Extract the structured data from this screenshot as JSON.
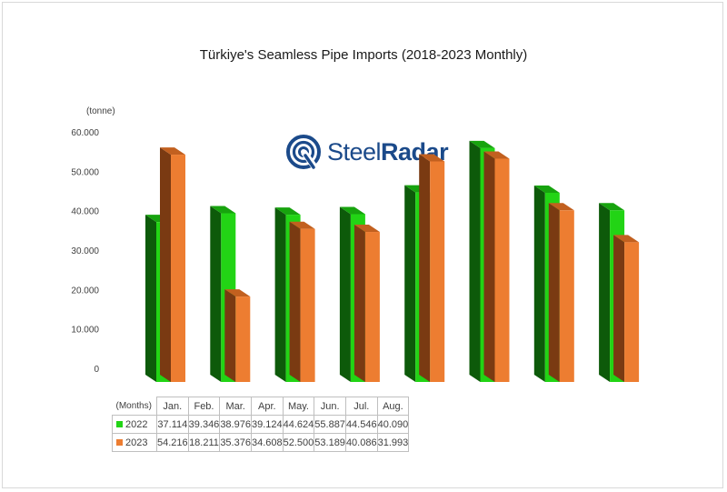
{
  "colors": {
    "series_2022_front": "#22d415",
    "series_2022_side": "#0d5a0a",
    "series_2023_front": "#ed7d31",
    "series_2023_side": "#7a3a12",
    "logo_blue": "#1b4a8a"
  },
  "logo": {
    "text_light": "Steel",
    "text_bold": "Radar",
    "icon": "steelradar-logo-icon"
  },
  "table": {
    "corner_label": "(Months)"
  },
  "chart_data": {
    "type": "bar",
    "title": "Türkiye's Seamless Pipe Imports (2018-2023 Monthly)",
    "ylabel": "(tonne)",
    "xlabel": "",
    "ylim": [
      0,
      60000
    ],
    "yticks": [
      0,
      10000,
      20000,
      30000,
      40000,
      50000,
      60000
    ],
    "ytick_labels": [
      "0",
      "10.000",
      "20.000",
      "30.000",
      "40.000",
      "50.000",
      "60.000"
    ],
    "grid": false,
    "legend": "data-table",
    "categories": [
      "Jan.",
      "Feb.",
      "Mar.",
      "Apr.",
      "May.",
      "Jun.",
      "Jul.",
      "Aug."
    ],
    "series": [
      {
        "name": "2022",
        "values": [
          37114,
          39346,
          38976,
          39124,
          44624,
          55887,
          44546,
          40090
        ],
        "labels": [
          "37.114",
          "39.346",
          "38.976",
          "39.124",
          "44.624",
          "55.887",
          "44.546",
          "40.090"
        ]
      },
      {
        "name": "2023",
        "values": [
          54216,
          18211,
          35376,
          34608,
          52500,
          53189,
          40086,
          31993
        ],
        "labels": [
          "54.216",
          "18.211",
          "35.376",
          "34.608",
          "52.500",
          "53.189",
          "40.086",
          "31.993"
        ]
      }
    ]
  }
}
